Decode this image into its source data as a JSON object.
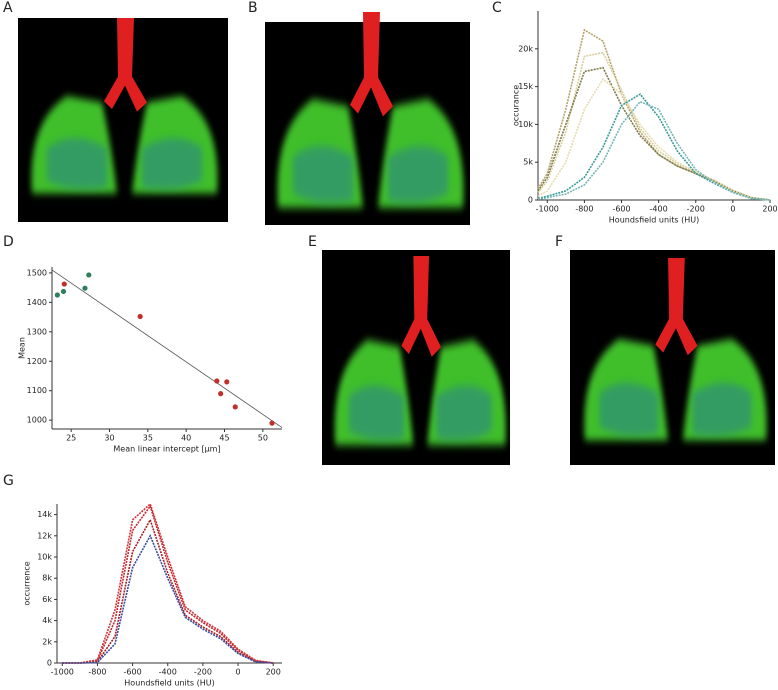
{
  "panels": [
    "A",
    "B",
    "C",
    "D",
    "E",
    "F",
    "G"
  ],
  "chart_data": [
    {
      "type": "line",
      "xlabel": "Houndsfield units (HU)",
      "ylabel": "occurance",
      "x": [
        -1050,
        -1000,
        -900,
        -800,
        -700,
        -600,
        -500,
        -400,
        -300,
        -200,
        -100,
        0,
        100,
        200
      ],
      "series": [
        {
          "color": "#b5a36a",
          "values": [
            1500,
            3500,
            12000,
            22500,
            21000,
            14000,
            9000,
            6000,
            4500,
            3500,
            2500,
            1200,
            300,
            0
          ]
        },
        {
          "color": "#d9cf9c",
          "values": [
            1000,
            2500,
            9000,
            19000,
            19500,
            14500,
            9500,
            6500,
            4800,
            3600,
            2600,
            1300,
            300,
            0
          ]
        },
        {
          "color": "#7d7a4c",
          "values": [
            1200,
            3000,
            10000,
            17000,
            17500,
            12500,
            8500,
            6000,
            4500,
            3500,
            2500,
            1200,
            300,
            0
          ]
        },
        {
          "color": "#e6dcae",
          "values": [
            500,
            1200,
            5000,
            12000,
            16000,
            14000,
            10000,
            7000,
            5000,
            3700,
            2600,
            1200,
            300,
            0
          ]
        },
        {
          "color": "#3a9a98",
          "values": [
            200,
            500,
            1200,
            3000,
            7000,
            12500,
            14000,
            11000,
            6500,
            3500,
            2200,
            1000,
            200,
            0
          ]
        },
        {
          "color": "#74b7b5",
          "values": [
            100,
            300,
            800,
            2000,
            5000,
            10000,
            13000,
            12000,
            7500,
            4000,
            2300,
            1000,
            200,
            0
          ]
        }
      ],
      "xlim": [
        -1050,
        200
      ],
      "xticks": [
        -1000,
        -800,
        -600,
        -400,
        -200,
        0,
        200
      ],
      "ylim": [
        0,
        25000
      ],
      "yticks": [
        0,
        {
          "value": 5000,
          "label": "5k"
        },
        {
          "value": 10000,
          "label": "10k"
        },
        {
          "value": 15000,
          "label": "15k"
        },
        {
          "value": 20000,
          "label": "20k"
        }
      ]
    },
    {
      "type": "scatter",
      "xlabel": "Mean linear intercept [µm]",
      "ylabel": "Mean",
      "series": [
        {
          "color": "#2e7d5b",
          "x": [
            23.2,
            24.0,
            26.8,
            27.3
          ],
          "values": [
            1425,
            1437,
            1448,
            1493
          ]
        },
        {
          "color": "#c0302b",
          "x": [
            24.1,
            34.0,
            44.0,
            44.5,
            45.3,
            46.4,
            51.2
          ],
          "values": [
            1462,
            1352,
            1133,
            1090,
            1130,
            1045,
            990
          ]
        }
      ],
      "fit": {
        "color": "#555555",
        "x": [
          22.5,
          52.5
        ],
        "values": [
          1510,
          975
        ]
      },
      "xlim": [
        22.5,
        52.5
      ],
      "xticks": [
        25,
        30,
        35,
        40,
        45,
        50
      ],
      "ylim": [
        970,
        1520
      ],
      "yticks": [
        1000,
        1100,
        1200,
        1300,
        1400,
        1500
      ]
    },
    {
      "type": "line",
      "xlabel": "Houndsfield units (HU)",
      "ylabel": "occurrence",
      "x": [
        -1000,
        -900,
        -800,
        -700,
        -600,
        -500,
        -400,
        -300,
        -200,
        -100,
        0,
        100,
        200
      ],
      "series": [
        {
          "color": "#c0282b",
          "values": [
            0,
            0,
            200,
            4000,
            12500,
            14800,
            9500,
            5000,
            3800,
            2800,
            1200,
            200,
            0
          ]
        },
        {
          "color": "#a81f25",
          "values": [
            0,
            0,
            100,
            2500,
            10500,
            13500,
            8500,
            4500,
            3400,
            2500,
            1000,
            150,
            0
          ]
        },
        {
          "color": "#d0343a",
          "values": [
            0,
            0,
            300,
            5000,
            13500,
            15000,
            10000,
            5300,
            4000,
            3000,
            1300,
            250,
            0
          ]
        },
        {
          "color": "#3a4aa0",
          "values": [
            0,
            0,
            50,
            1800,
            9000,
            12000,
            8000,
            4300,
            3200,
            2300,
            900,
            100,
            0
          ]
        }
      ],
      "xlim": [
        -1030,
        250
      ],
      "xticks": [
        -1000,
        -800,
        -600,
        -400,
        -200,
        0,
        200
      ],
      "ylim": [
        0,
        15000
      ],
      "yticks": [
        0,
        {
          "value": 2000,
          "label": "2k"
        },
        {
          "value": 4000,
          "label": "4k"
        },
        {
          "value": 6000,
          "label": "6k"
        },
        {
          "value": 8000,
          "label": "8k"
        },
        {
          "value": 10000,
          "label": "10k"
        },
        {
          "value": 12000,
          "label": "12k"
        },
        {
          "value": 14000,
          "label": "14k"
        }
      ]
    }
  ]
}
